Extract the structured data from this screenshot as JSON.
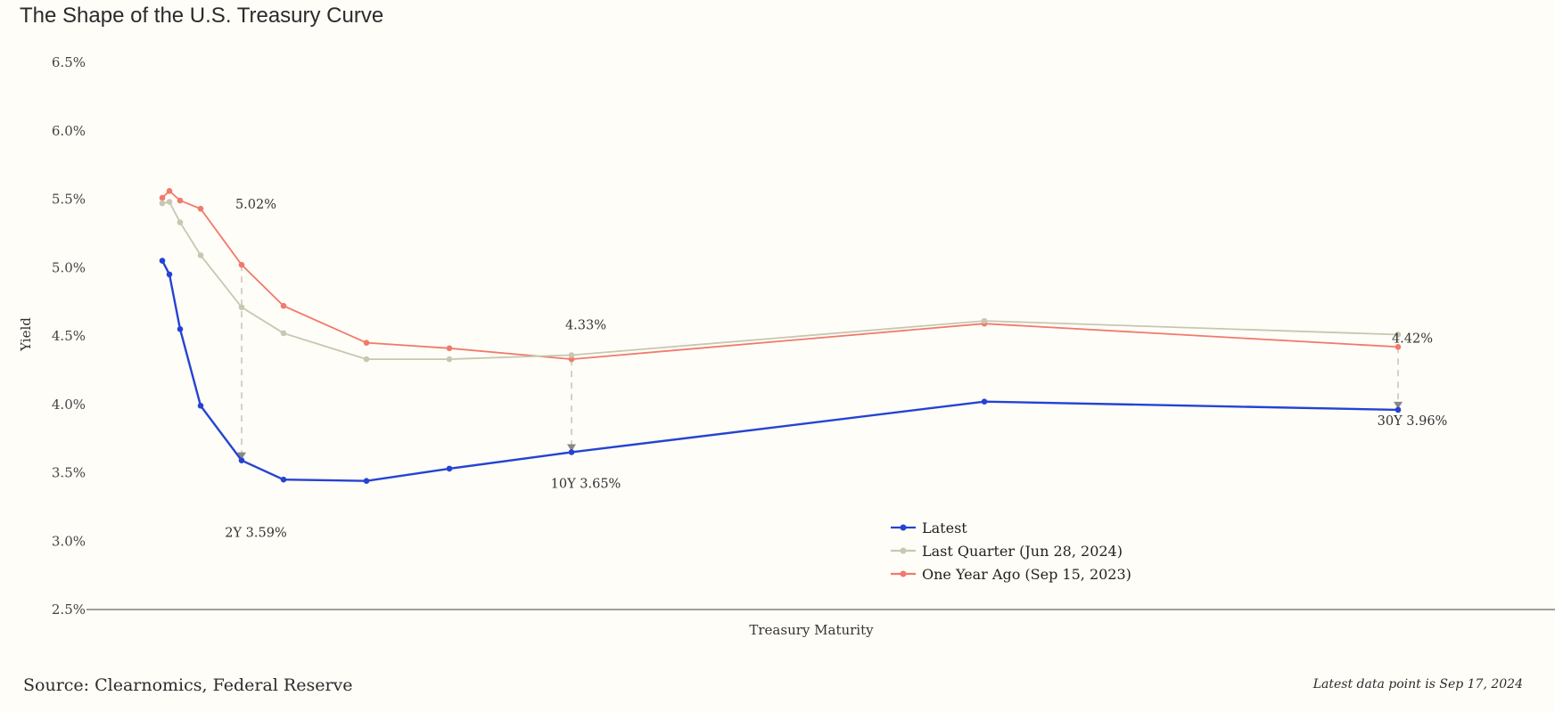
{
  "header": {
    "title": "The Shape of the U.S. Treasury Curve"
  },
  "footer": {
    "source": "Source: Clearnomics, Federal Reserve",
    "latest_note": "Latest data point is Sep 17, 2024"
  },
  "chart_data": {
    "type": "line",
    "xlabel": "Treasury Maturity",
    "ylabel": "Yield",
    "ylim": [
      2.5,
      6.5
    ],
    "yticks": [
      "2.5%",
      "3.0%",
      "3.5%",
      "4.0%",
      "4.5%",
      "5.0%",
      "5.5%",
      "6.0%",
      "6.5%"
    ],
    "x": [
      0.083,
      0.25,
      0.5,
      1,
      2,
      3,
      5,
      7,
      10,
      20,
      30
    ],
    "legend_position": "bottom-center",
    "series": [
      {
        "name": "Latest",
        "color": "#2443d4",
        "values": [
          5.05,
          4.95,
          4.55,
          3.99,
          3.59,
          3.45,
          3.44,
          3.53,
          3.65,
          4.02,
          3.96
        ]
      },
      {
        "name": "Last Quarter (Jun 28, 2024)",
        "color": "#c8c7b2",
        "values": [
          5.47,
          5.48,
          5.33,
          5.09,
          4.71,
          4.52,
          4.33,
          4.33,
          4.36,
          4.61,
          4.51
        ]
      },
      {
        "name": "One Year Ago (Sep 15, 2023)",
        "color": "#f07a6c",
        "values": [
          5.51,
          5.56,
          5.49,
          5.43,
          5.02,
          4.72,
          4.45,
          4.41,
          4.33,
          4.59,
          4.42
        ]
      }
    ],
    "annotations": [
      {
        "text": "5.02%",
        "x": 2,
        "y": 5.43
      },
      {
        "text": "2Y 3.59%",
        "x": 2,
        "y": 3.03
      },
      {
        "text": "4.33%",
        "x": 10,
        "y": 4.55
      },
      {
        "text": "10Y 3.65%",
        "x": 10,
        "y": 3.39
      },
      {
        "text": "4.42%",
        "x": 30,
        "y": 4.45
      },
      {
        "text": "30Y 3.96%",
        "x": 30,
        "y": 3.85
      }
    ],
    "drop_lines": [
      {
        "x": 2,
        "from": 5.02,
        "to": 3.59
      },
      {
        "x": 10,
        "from": 4.33,
        "to": 3.65
      },
      {
        "x": 30,
        "from": 4.42,
        "to": 3.96
      }
    ]
  }
}
